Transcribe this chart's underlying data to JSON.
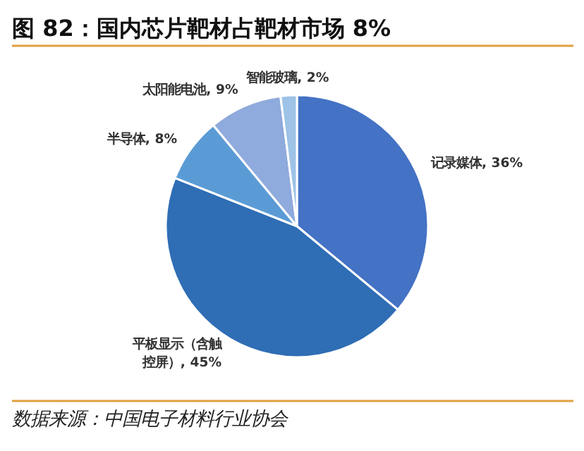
{
  "chart_data": {
    "type": "pie",
    "title": "图 82：国内芯片靶材占靶材市场 8%",
    "categories": [
      "记录媒体",
      "平板显示（含触控屏）",
      "半导体",
      "太阳能电池",
      "智能玻璃"
    ],
    "values": [
      36,
      45,
      8,
      9,
      2
    ],
    "value_labels": [
      "36%",
      "45%",
      "8%",
      "9%",
      "2%"
    ],
    "colors": [
      "#4472c4",
      "#2f6db5",
      "#5b9bd5",
      "#8faadc",
      "#9dc3e6"
    ],
    "annotations": [
      "数据来源：中国电子材料行业协会"
    ]
  }
}
